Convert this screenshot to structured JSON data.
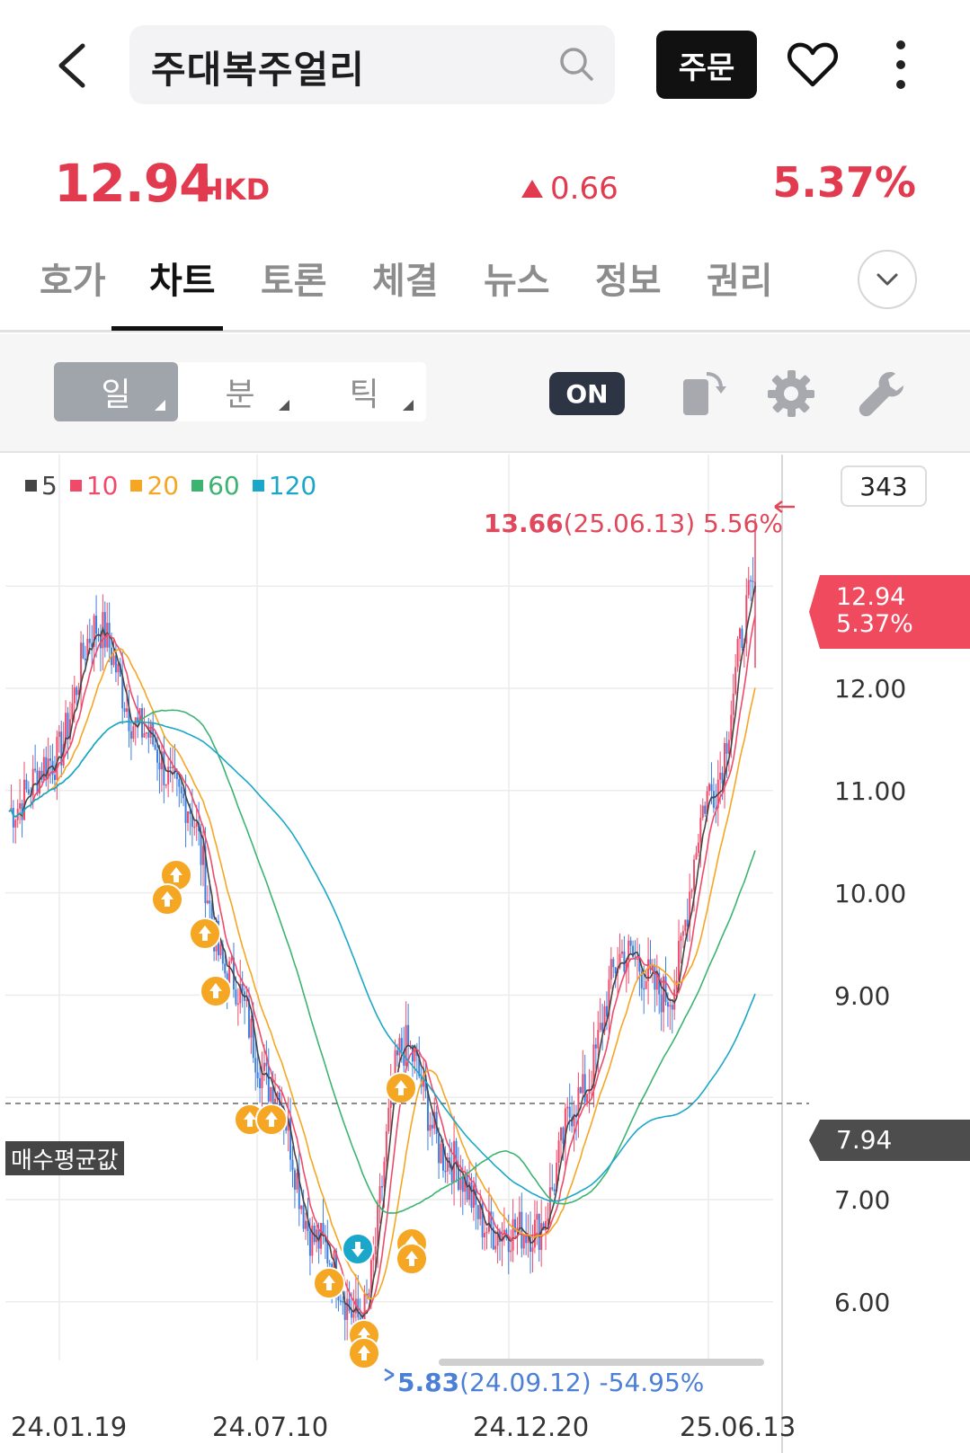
{
  "header": {
    "search_text": "주대복주얼리",
    "order_label": "주문"
  },
  "quote": {
    "price": "12.94",
    "currency": "HKD",
    "change": "0.66",
    "change_pct": "5.37%",
    "color_up": "#e23a4f"
  },
  "tabs": [
    {
      "label": "호가",
      "active": false
    },
    {
      "label": "차트",
      "active": true
    },
    {
      "label": "토론",
      "active": false
    },
    {
      "label": "체결",
      "active": false
    },
    {
      "label": "뉴스",
      "active": false
    },
    {
      "label": "정보",
      "active": false
    },
    {
      "label": "권리",
      "active": false
    }
  ],
  "toolbar": {
    "periods": [
      {
        "label": "일",
        "active": true
      },
      {
        "label": "분",
        "active": false
      },
      {
        "label": "틱",
        "active": false
      }
    ],
    "on_label": "ON",
    "icons": [
      "rotate-screen-icon",
      "gear-icon",
      "wrench-icon"
    ]
  },
  "chart_data": {
    "type": "line",
    "legend": [
      {
        "label": "5",
        "color": "#444444"
      },
      {
        "label": "10",
        "color": "#ef4a6a"
      },
      {
        "label": "20",
        "color": "#f5a623"
      },
      {
        "label": "60",
        "color": "#3cb371"
      },
      {
        "label": "120",
        "color": "#1aa7c9"
      }
    ],
    "candle_count": "343",
    "x_ticks": [
      "24.01.19",
      "24.07.10",
      "24.12.20",
      "25.06.13"
    ],
    "y_ticks": [
      "12.00",
      "11.00",
      "10.00",
      "9.00",
      "7.00",
      "6.00"
    ],
    "ylim": [
      5.5,
      13.8
    ],
    "current_price": "12.94",
    "current_change": "5.37%",
    "avg_buy_price": "7.94",
    "avg_buy_label": "매수평균값",
    "high": {
      "value": "13.66",
      "date": "(25.06.13)",
      "pct": "5.56%"
    },
    "low": {
      "value": "5.83",
      "date": "(24.09.12)",
      "pct": "-54.95%"
    },
    "price_path": [
      {
        "x": "24.01",
        "y": 10.8
      },
      {
        "x": "24.02",
        "y": 11.3
      },
      {
        "x": "24.03",
        "y": 12.6
      },
      {
        "x": "24.04",
        "y": 11.6
      },
      {
        "x": "24.05",
        "y": 10.9
      },
      {
        "x": "24.06",
        "y": 9.2
      },
      {
        "x": "24.07",
        "y": 8.1
      },
      {
        "x": "24.08",
        "y": 6.6
      },
      {
        "x": "24.09",
        "y": 5.83
      },
      {
        "x": "24.10",
        "y": 8.5
      },
      {
        "x": "24.11",
        "y": 7.4
      },
      {
        "x": "24.12",
        "y": 6.7
      },
      {
        "x": "25.01",
        "y": 6.7
      },
      {
        "x": "25.02",
        "y": 8.0
      },
      {
        "x": "25.03",
        "y": 9.4
      },
      {
        "x": "25.04",
        "y": 9.0
      },
      {
        "x": "25.05",
        "y": 11.0
      },
      {
        "x": "25.06",
        "y": 12.94
      }
    ]
  }
}
